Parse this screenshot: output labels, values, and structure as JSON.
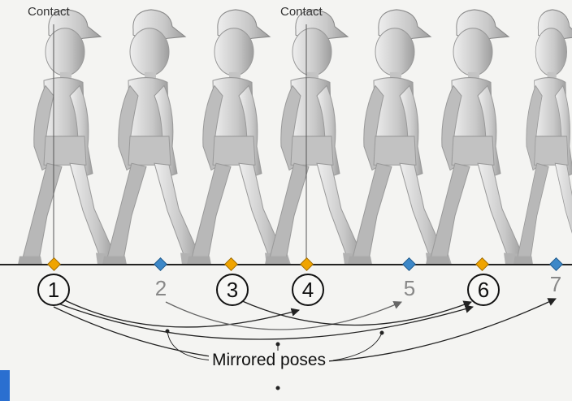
{
  "contact_labels": [
    "Contact",
    "Contact"
  ],
  "frames": [
    {
      "number": "1",
      "style": "circled",
      "marker": "key"
    },
    {
      "number": "2",
      "style": "plain",
      "marker": "breakdown"
    },
    {
      "number": "3",
      "style": "circled",
      "marker": "key"
    },
    {
      "number": "4",
      "style": "circled",
      "marker": "key"
    },
    {
      "number": "5",
      "style": "plain",
      "marker": "breakdown"
    },
    {
      "number": "6",
      "style": "circled",
      "marker": "key"
    },
    {
      "number": "7",
      "style": "plain",
      "marker": "breakdown"
    }
  ],
  "caption": "Mirrored poses",
  "colors": {
    "key_marker": "#f0a400",
    "breakdown_marker": "#3d88c8",
    "figure": "#c9c9c9",
    "line": "#222222"
  }
}
